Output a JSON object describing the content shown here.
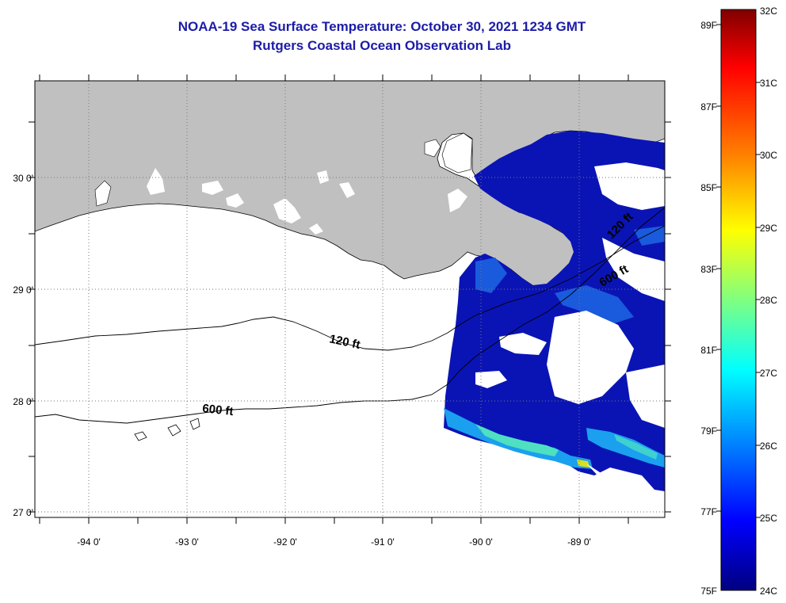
{
  "title": {
    "line1": "NOAA-19 Sea Surface Temperature:  October 30, 2021 1234 GMT",
    "line2": "Rutgers Coastal Ocean Observation Lab"
  },
  "map": {
    "lat_labels": [
      "30 0'",
      "29 0'",
      "28 0'",
      "27 0'"
    ],
    "lon_labels": [
      "-94 0'",
      "-93 0'",
      "-92 0'",
      "-91 0'",
      "-90 0'",
      "-89 0'"
    ],
    "contour_labels": [
      "120 ft",
      "600 ft",
      "600 ft",
      "120 ft"
    ],
    "colors": {
      "land": "#c0c0c0",
      "water_bg": "#ffffff",
      "sst_dark": "#0a14b4",
      "sst_warm": "#2bc8ee"
    }
  },
  "colorbar": {
    "fahrenheit": [
      "89F",
      "87F",
      "85F",
      "83F",
      "81F",
      "79F",
      "77F",
      "75F"
    ],
    "celsius": [
      "32C",
      "31C",
      "30C",
      "29C",
      "28C",
      "27C",
      "26C",
      "25C",
      "24C"
    ],
    "stops": [
      "#800000",
      "#ff0000",
      "#ff8000",
      "#ffff00",
      "#80ff80",
      "#00ffff",
      "#0080ff",
      "#0000ff",
      "#000080"
    ]
  }
}
